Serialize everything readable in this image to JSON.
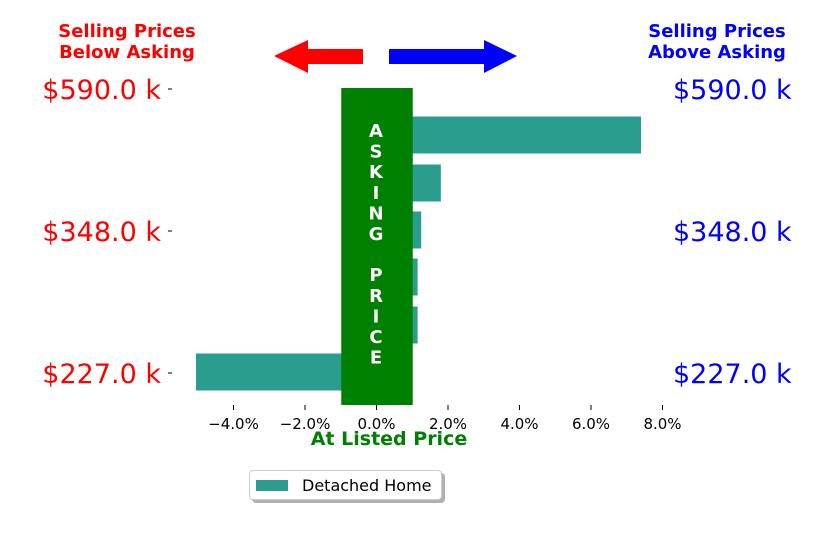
{
  "header": {
    "left_line1": "Selling Prices",
    "left_line2": "Below Asking",
    "right_line1": "Selling Prices",
    "right_line2": "Above Asking"
  },
  "colors": {
    "below": "#ff0000",
    "above": "#0000ff",
    "asking_band": "#008000",
    "bar": "#2a9d8f"
  },
  "asking_band_text": "ASKING PRICE",
  "legend": {
    "label": "Detached Home"
  },
  "chart_data": {
    "type": "bar",
    "orientation": "horizontal",
    "xlabel": "At Listed Price",
    "xlim": [
      -5.5,
      8.0
    ],
    "x_ticks": [
      "−4.0%",
      "−2.0%",
      "0.0%",
      "2.0%",
      "4.0%",
      "6.0%",
      "8.0%"
    ],
    "x_tick_values": [
      -4,
      -2,
      0,
      2,
      4,
      6,
      8
    ],
    "y_left_labels": [
      "$590.0 k",
      "$348.0 k",
      "$227.0 k"
    ],
    "y_right_labels": [
      "$590.0 k",
      "$348.0 k",
      "$227.0 k"
    ],
    "series": [
      {
        "name": "Detached Home",
        "values": [
          7.4,
          1.8,
          1.25,
          1.15,
          1.15,
          -5.05
        ]
      }
    ],
    "asking_band_range": [
      -1.0,
      1.0
    ]
  }
}
